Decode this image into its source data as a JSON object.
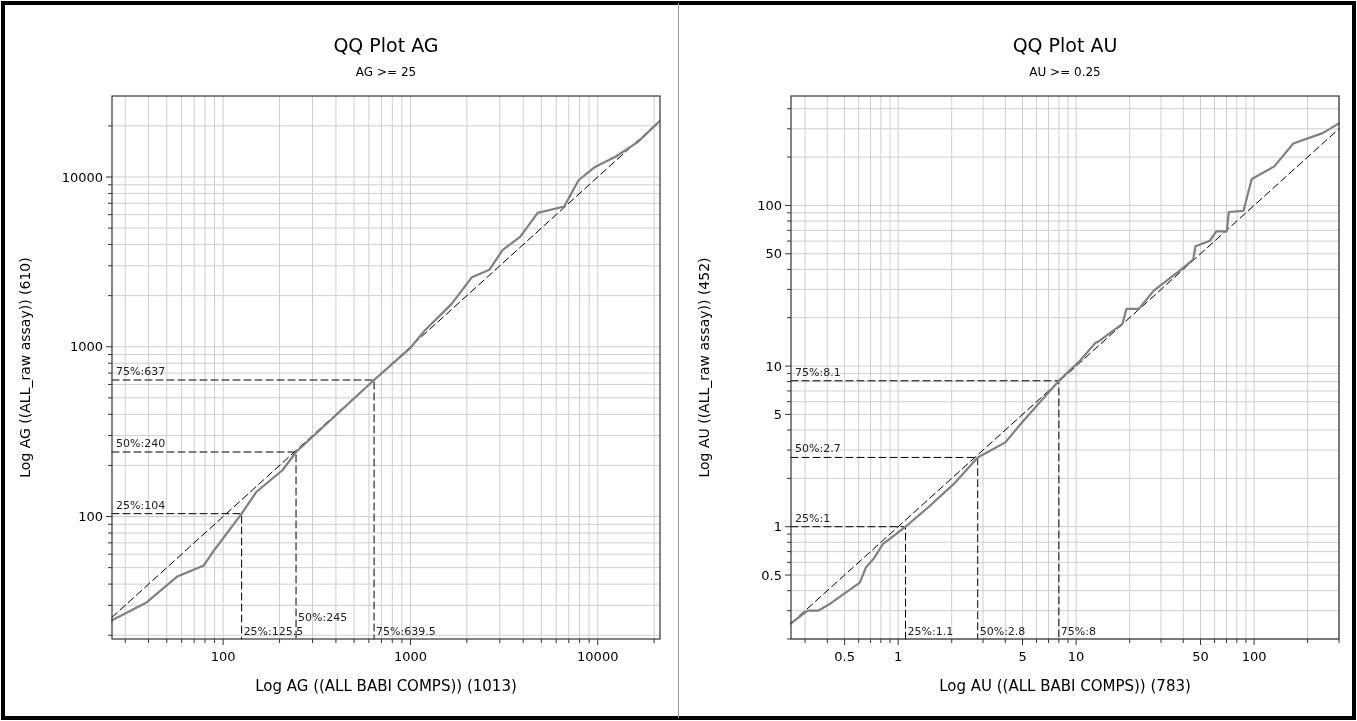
{
  "chart_data": [
    {
      "type": "line",
      "title": "QQ Plot AG",
      "subtitle": "AG >= 25",
      "xlabel": "Log AG ((ALL BABI COMPS)) (1013)",
      "ylabel": "Log AG ((ALL_raw assay)) (610)",
      "log": "xy",
      "grid": true,
      "marker": "none",
      "xlim": [
        25.5,
        21500
      ],
      "ylim": [
        19,
        30000
      ],
      "xticks": [
        {
          "value": 30,
          "label": null
        },
        {
          "value": 40,
          "label": null
        },
        {
          "value": 50,
          "label": null
        },
        {
          "value": 60,
          "label": null
        },
        {
          "value": 70,
          "label": null
        },
        {
          "value": 80,
          "label": null
        },
        {
          "value": 90,
          "label": null
        },
        100,
        {
          "value": 200,
          "label": null
        },
        {
          "value": 300,
          "label": null
        },
        {
          "value": 400,
          "label": null
        },
        {
          "value": 500,
          "label": null
        },
        {
          "value": 600,
          "label": null
        },
        {
          "value": 700,
          "label": null
        },
        {
          "value": 800,
          "label": null
        },
        {
          "value": 900,
          "label": null
        },
        1000,
        {
          "value": 2000,
          "label": null
        },
        {
          "value": 3000,
          "label": null
        },
        {
          "value": 4000,
          "label": null
        },
        {
          "value": 5000,
          "label": null
        },
        {
          "value": 6000,
          "label": null
        },
        {
          "value": 7000,
          "label": null
        },
        {
          "value": 8000,
          "label": null
        },
        {
          "value": 9000,
          "label": null
        },
        10000,
        {
          "value": 20000,
          "label": null
        }
      ],
      "yticks": [
        {
          "value": 20,
          "label": null
        },
        {
          "value": 30,
          "label": null
        },
        {
          "value": 40,
          "label": null
        },
        {
          "value": 50,
          "label": null
        },
        {
          "value": 60,
          "label": null
        },
        {
          "value": 70,
          "label": null
        },
        {
          "value": 80,
          "label": null
        },
        {
          "value": 90,
          "label": null
        },
        100,
        {
          "value": 200,
          "label": null
        },
        {
          "value": 300,
          "label": null
        },
        {
          "value": 400,
          "label": null
        },
        {
          "value": 500,
          "label": null
        },
        {
          "value": 600,
          "label": null
        },
        {
          "value": 700,
          "label": null
        },
        {
          "value": 800,
          "label": null
        },
        {
          "value": 900,
          "label": null
        },
        1000,
        {
          "value": 2000,
          "label": null
        },
        {
          "value": 3000,
          "label": null
        },
        {
          "value": 4000,
          "label": null
        },
        {
          "value": 5000,
          "label": null
        },
        {
          "value": 6000,
          "label": null
        },
        {
          "value": 7000,
          "label": null
        },
        {
          "value": 8000,
          "label": null
        },
        {
          "value": 9000,
          "label": null
        },
        10000,
        {
          "value": 20000,
          "label": null
        }
      ],
      "series": [
        {
          "color": "#000000",
          "line_style": "dashed",
          "x": [
            25.5,
            21500
          ],
          "values": [
            25.5,
            21500
          ]
        },
        {
          "color": "#000000",
          "line_style": "dashed",
          "x": [
            25.5,
            125.5,
            125.5
          ],
          "values": [
            104,
            104,
            19
          ]
        },
        {
          "color": "#000000",
          "line_style": "dashed",
          "x": [
            25.5,
            245,
            245
          ],
          "values": [
            240,
            240,
            19
          ]
        },
        {
          "color": "#000000",
          "line_style": "dashed",
          "x": [
            25.5,
            639.5,
            639.5
          ],
          "values": [
            637,
            637,
            19
          ]
        },
        {
          "color": "#808080",
          "line_style": "solid",
          "x": [
            25.5,
            39,
            57,
            78.8,
            87.7,
            125.5,
            150.7,
            208,
            245,
            639.5,
            1000,
            1200,
            1660,
            2130,
            2640,
            3100,
            3850,
            4780,
            6620,
            7900,
            9600,
            12500,
            16400,
            21000
          ],
          "values": [
            24.5,
            31.2,
            44.4,
            51.5,
            61.4,
            104,
            140,
            188,
            240,
            637,
            986,
            1257,
            1790,
            2570,
            2840,
            3710,
            4440,
            6150,
            6700,
            9570,
            11400,
            13200,
            16100,
            20900
          ]
        }
      ],
      "annotations": [
        {
          "text": "25%:104",
          "x": 25.5,
          "y": 104
        },
        {
          "text": "50%:240",
          "x": 25.5,
          "y": 240
        },
        {
          "text": "75%:637",
          "x": 25.5,
          "y": 637
        },
        {
          "text": "25%:125.5",
          "x": 125.5,
          "y": 19
        },
        {
          "text": "50%:245",
          "x": 245,
          "y": 19
        },
        {
          "text": "75%:639.5",
          "x": 639.5,
          "y": 19
        }
      ]
    },
    {
      "type": "line",
      "title": "QQ Plot AU",
      "subtitle": "AU >= 0.25",
      "xlabel": "Log AU ((ALL BABI COMPS)) (783)",
      "ylabel": "Log AU ((ALL_raw assay)) (452)",
      "log": "xy",
      "grid": true,
      "marker": "none",
      "xlim": [
        0.25,
        300
      ],
      "ylim": [
        0.2,
        480
      ],
      "xticks": [
        {
          "value": 0.3,
          "label": null
        },
        {
          "value": 0.4,
          "label": null
        },
        0.5,
        {
          "value": 0.6,
          "label": null
        },
        {
          "value": 0.7,
          "label": null
        },
        {
          "value": 0.8,
          "label": null
        },
        {
          "value": 0.9,
          "label": null
        },
        1,
        {
          "value": 2,
          "label": null
        },
        {
          "value": 3,
          "label": null
        },
        {
          "value": 4,
          "label": null
        },
        5,
        {
          "value": 6,
          "label": null
        },
        {
          "value": 7,
          "label": null
        },
        {
          "value": 8,
          "label": null
        },
        {
          "value": 9,
          "label": null
        },
        10,
        {
          "value": 20,
          "label": null
        },
        {
          "value": 30,
          "label": null
        },
        {
          "value": 40,
          "label": null
        },
        50,
        {
          "value": 60,
          "label": null
        },
        {
          "value": 70,
          "label": null
        },
        {
          "value": 80,
          "label": null
        },
        {
          "value": 90,
          "label": null
        },
        100,
        {
          "value": 200,
          "label": null
        },
        {
          "value": 300,
          "label": null
        }
      ],
      "yticks": [
        {
          "value": 0.2,
          "label": null
        },
        {
          "value": 0.3,
          "label": null
        },
        {
          "value": 0.4,
          "label": null
        },
        0.5,
        {
          "value": 0.6,
          "label": null
        },
        {
          "value": 0.7,
          "label": null
        },
        {
          "value": 0.8,
          "label": null
        },
        {
          "value": 0.9,
          "label": null
        },
        1,
        {
          "value": 2,
          "label": null
        },
        {
          "value": 3,
          "label": null
        },
        {
          "value": 4,
          "label": null
        },
        5,
        {
          "value": 6,
          "label": null
        },
        {
          "value": 7,
          "label": null
        },
        {
          "value": 8,
          "label": null
        },
        {
          "value": 9,
          "label": null
        },
        10,
        {
          "value": 20,
          "label": null
        },
        {
          "value": 30,
          "label": null
        },
        {
          "value": 40,
          "label": null
        },
        50,
        {
          "value": 60,
          "label": null
        },
        {
          "value": 70,
          "label": null
        },
        {
          "value": 80,
          "label": null
        },
        {
          "value": 90,
          "label": null
        },
        100,
        {
          "value": 200,
          "label": null
        },
        {
          "value": 300,
          "label": null
        },
        {
          "value": 400,
          "label": null
        }
      ],
      "series": [
        {
          "color": "#000000",
          "line_style": "dashed",
          "x": [
            0.25,
            300
          ],
          "values": [
            0.25,
            300
          ]
        },
        {
          "color": "#000000",
          "line_style": "dashed",
          "x": [
            0.25,
            1.1,
            1.1
          ],
          "values": [
            1,
            1,
            0.2
          ]
        },
        {
          "color": "#000000",
          "line_style": "dashed",
          "x": [
            0.25,
            2.8,
            2.8
          ],
          "values": [
            2.7,
            2.7,
            0.2
          ]
        },
        {
          "color": "#000000",
          "line_style": "dashed",
          "x": [
            0.25,
            8,
            8
          ],
          "values": [
            8.1,
            8.1,
            0.2
          ]
        },
        {
          "color": "#808080",
          "line_style": "solid",
          "x": [
            0.25,
            0.31,
            0.355,
            0.417,
            0.609,
            0.66,
            0.73,
            0.82,
            0.96,
            1.1,
            1.44,
            2.05,
            2.8,
            4.0,
            4.99,
            8,
            10.6,
            12.8,
            13.2,
            18.2,
            19.2,
            22.5,
            27.3,
            38.7,
            45.5,
            46.8,
            56.5,
            61.3,
            70.2,
            72.1,
            87.2,
            97,
            130,
            166,
            243,
            300
          ],
          "values": [
            0.25,
            0.3,
            0.3,
            0.333,
            0.449,
            0.56,
            0.634,
            0.78,
            0.89,
            1,
            1.29,
            1.84,
            2.7,
            3.35,
            4.49,
            8.1,
            10.9,
            13.9,
            14.1,
            18.3,
            22.7,
            22.7,
            29.5,
            39.7,
            46,
            55.7,
            60.3,
            69,
            69,
            91,
            92.7,
            146,
            175,
            243,
            282,
            324
          ]
        }
      ],
      "annotations": [
        {
          "text": "25%:1",
          "x": 0.25,
          "y": 1
        },
        {
          "text": "50%:2.7",
          "x": 0.25,
          "y": 2.7
        },
        {
          "text": "75%:8.1",
          "x": 0.25,
          "y": 8.1
        },
        {
          "text": "25%:1.1",
          "x": 1.1,
          "y": 0.2
        },
        {
          "text": "50%:2.8",
          "x": 2.8,
          "y": 0.2
        },
        {
          "text": "75%:8",
          "x": 8,
          "y": 0.2
        }
      ]
    }
  ]
}
